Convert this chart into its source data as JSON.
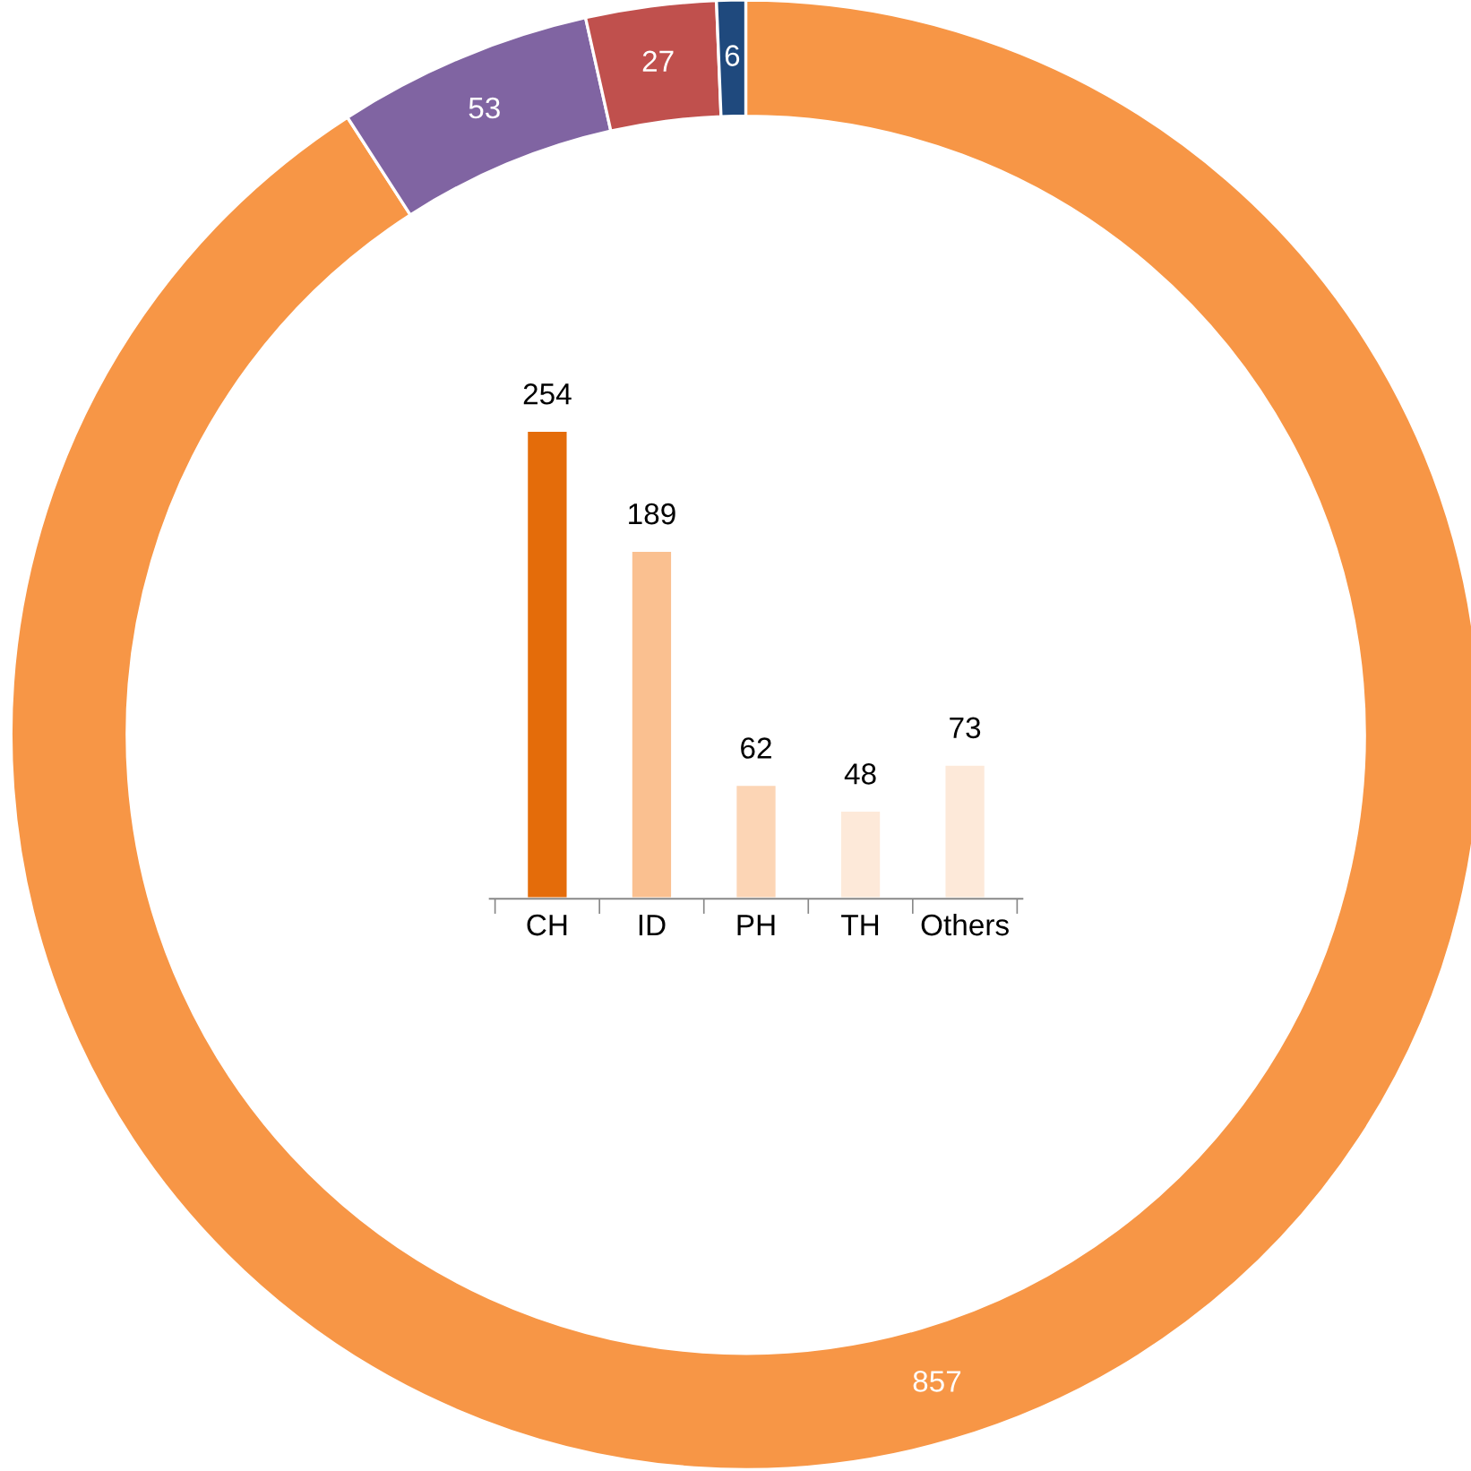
{
  "chart_data": [
    {
      "type": "donut",
      "categories": [
        null,
        null,
        null,
        null
      ],
      "values": [
        857,
        53,
        27,
        6
      ],
      "colors": [
        "#f79646",
        "#8064a2",
        "#c0504d",
        "#1f497d"
      ],
      "data_labels": true
    },
    {
      "type": "bar",
      "categories": [
        "CH",
        "ID",
        "PH",
        "TH",
        "Others"
      ],
      "values": [
        254,
        189,
        62,
        48,
        73
      ],
      "colors": [
        "#e46c0a",
        "#fac090",
        "#fcd5b5",
        "#fde9d9",
        "#fde9d9"
      ],
      "data_labels": true
    }
  ]
}
